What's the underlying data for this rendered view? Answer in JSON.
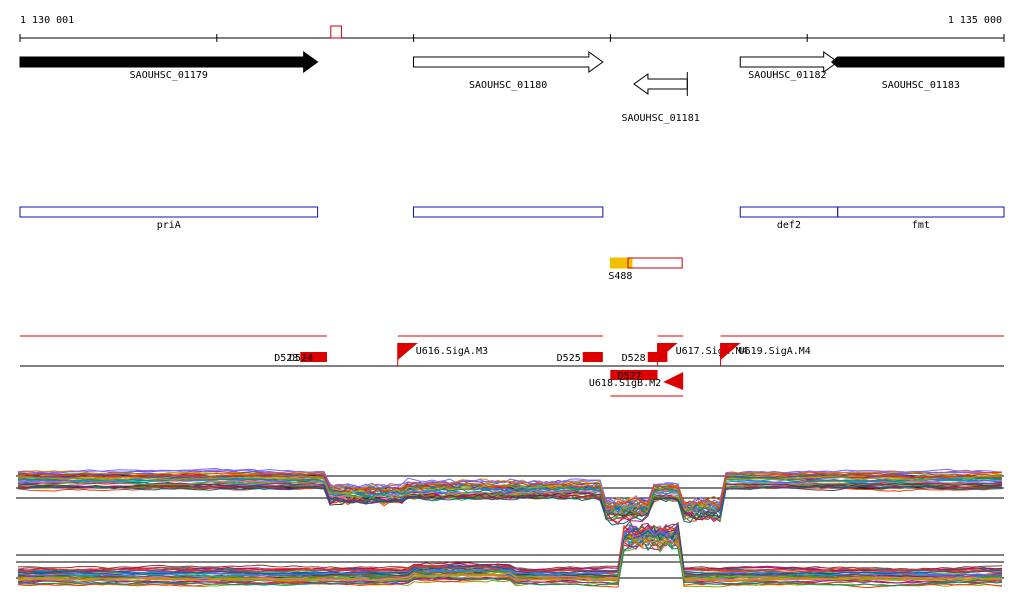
{
  "ruler": {
    "start_label": "1 130 001",
    "end_label": "1 135 000",
    "start_coord": 1130001,
    "end_coord": 1135000
  },
  "genes": [
    {
      "name": "SAOUHSC_01179",
      "start": 1130001,
      "end": 1131513,
      "strand": "+",
      "style": "filled",
      "row": 0
    },
    {
      "name": "SAOUHSC_01180",
      "start": 1132000,
      "end": 1132962,
      "strand": "+",
      "style": "outline",
      "row": 0
    },
    {
      "name": "SAOUHSC_01181",
      "start": 1133120,
      "end": 1133391,
      "strand": "-",
      "style": "outline",
      "row": 1
    },
    {
      "name": "SAOUHSC_01182",
      "start": 1133660,
      "end": 1134155,
      "strand": "+",
      "style": "outline",
      "row": 0
    },
    {
      "name": "SAOUHSC_01183",
      "start": 1134155,
      "end": 1135000,
      "strand": "+",
      "style": "filled",
      "row": 0
    }
  ],
  "small_feature": {
    "start": 1131580,
    "end": 1131634,
    "color": "#cc0000"
  },
  "operons": [
    {
      "label": "priA",
      "start": 1130001,
      "end": 1131513
    },
    {
      "label": "",
      "start": 1132000,
      "end": 1132962
    },
    {
      "label": "def2",
      "start": 1133660,
      "end": 1134155
    },
    {
      "label": "fmt",
      "start": 1134155,
      "end": 1135000
    }
  ],
  "segments": [
    {
      "label": "S488",
      "start": 1133000,
      "end": 1133110,
      "color": "#f0c000",
      "filled": true
    },
    {
      "label": "",
      "start": 1133090,
      "end": 1133365,
      "color": "#cc0000",
      "filled": false
    }
  ],
  "regulation": {
    "upper_lines": [
      {
        "start": 1130001,
        "end": 1131560
      },
      {
        "start": 1131920,
        "end": 1132962
      },
      {
        "start": 1133240,
        "end": 1133370
      },
      {
        "start": 1133560,
        "end": 1135000
      }
    ],
    "lower_lines": [
      {
        "start": 1133000,
        "end": 1133370
      }
    ],
    "features": [
      {
        "label": "D523",
        "start": 1131425,
        "end": 1131560,
        "type": "down"
      },
      {
        "label": "D524",
        "start": 1131500,
        "end": 1131560,
        "type": "down"
      },
      {
        "label": "U616.SigA.M3",
        "start": 1131920,
        "end": 1132010,
        "type": "up-flag"
      },
      {
        "label": "D525",
        "start": 1132860,
        "end": 1132962,
        "type": "down"
      },
      {
        "label": "D528",
        "start": 1133190,
        "end": 1133290,
        "type": "down"
      },
      {
        "label": "U617.SigA.M4",
        "start": 1133240,
        "end": 1133340,
        "type": "up-flag"
      },
      {
        "label": "D527",
        "start": 1133000,
        "end": 1133240,
        "type": "down-below"
      },
      {
        "label": "U618.SigB.M2",
        "start": 1133270,
        "end": 1133370,
        "type": "up-flag-below"
      },
      {
        "label": "U619.SigA.M4",
        "start": 1133560,
        "end": 1133660,
        "type": "up-flag"
      }
    ]
  },
  "expression_tracks": [
    {
      "name": "track-1",
      "line_count": 38,
      "shape": "dip"
    },
    {
      "name": "track-2",
      "line_count": 38,
      "shape": "peak"
    }
  ],
  "colors": {
    "gene_fill": "#000000",
    "operon_outline": "#1010b0",
    "regulation": "#dd0000",
    "ruler": "#000000",
    "palette": [
      "#cc3333",
      "#3355cc",
      "#33aa33",
      "#dd8800",
      "#8833aa",
      "#00aaaa",
      "#aa5500",
      "#666666",
      "#ff66aa",
      "#88aa00",
      "#2277ff",
      "#cc0066",
      "#009966",
      "#444444",
      "#bb9900",
      "#7766ff",
      "#ff3300",
      "#006699",
      "#99cc33",
      "#993333"
    ]
  }
}
